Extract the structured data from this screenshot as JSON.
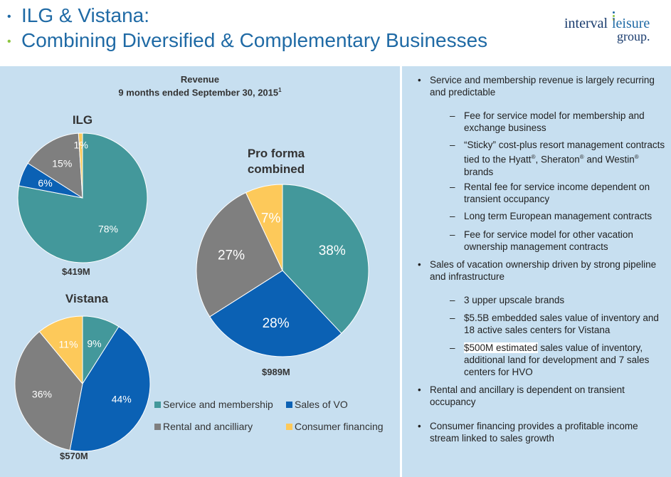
{
  "header": {
    "title_line1": "ILG & Vistana:",
    "title_line2": "Combining Diversified & Complementary Businesses",
    "bullet_char": "•",
    "bullet_colors": [
      "#1f6aa5",
      "#8dc63f"
    ],
    "title_color": "#1f6aa5"
  },
  "logo": {
    "word1": "interval",
    "word2": "leisure",
    "word3": "group.",
    "dot_colors": [
      "#1f6aa5",
      "#8dc63f",
      "#f7b500"
    ]
  },
  "chart_title": {
    "line1": "Revenue",
    "line2": "9 months ended September 30, 2015",
    "footnote": "1"
  },
  "colors": {
    "service_membership": "#43989b",
    "sales_vo": "#0b61b4",
    "rental_ancillary": "#7f7f7f",
    "consumer_financing": "#fdc95a"
  },
  "chart_data": [
    {
      "type": "pie",
      "title": "ILG",
      "total_label": "$419M",
      "slices": [
        {
          "name": "Service and membership",
          "value": 78,
          "label": "78%"
        },
        {
          "name": "Sales of VO",
          "value": 6,
          "label": "6%"
        },
        {
          "name": "Rental and ancilliary",
          "value": 15,
          "label": "15%"
        },
        {
          "name": "Consumer financing",
          "value": 1,
          "label": "1%"
        }
      ]
    },
    {
      "type": "pie",
      "title": "Vistana",
      "total_label": "$570M",
      "slices": [
        {
          "name": "Service and membership",
          "value": 9,
          "label": "9%"
        },
        {
          "name": "Sales of VO",
          "value": 44,
          "label": "44%"
        },
        {
          "name": "Rental and ancilliary",
          "value": 36,
          "label": "36%"
        },
        {
          "name": "Consumer financing",
          "value": 11,
          "label": "11%"
        }
      ]
    },
    {
      "type": "pie",
      "title_line1": "Pro forma",
      "title_line2": "combined",
      "total_label": "$989M",
      "slices": [
        {
          "name": "Service and membership",
          "value": 38,
          "label": "38%"
        },
        {
          "name": "Sales of VO",
          "value": 28,
          "label": "28%"
        },
        {
          "name": "Rental and ancilliary",
          "value": 27,
          "label": "27%"
        },
        {
          "name": "Consumer financing",
          "value": 7,
          "label": "7%"
        }
      ]
    }
  ],
  "legend": {
    "service_membership": "Service and membership",
    "sales_vo": "Sales of VO",
    "rental_ancillary": "Rental and ancilliary",
    "consumer_financing": "Consumer financing"
  },
  "bullets": {
    "b1": "Service and membership revenue is largely recurring and predictable",
    "b1_sub1": "Fee for service model for membership and exchange business",
    "b1_sub2_a": "“Sticky” cost-plus resort management contracts tied to the Hyatt",
    "b1_sub2_b": ", Sheraton",
    "b1_sub2_c": " and Westin",
    "b1_sub2_d": " brands",
    "reg": "®",
    "b1_sub3": "Rental fee for service income dependent on transient occupancy",
    "b1_sub4": "Long term European management contracts",
    "b1_sub5": "Fee for service model for other vacation ownership management contracts",
    "b2": "Sales of vacation ownership driven by strong pipeline and infrastructure",
    "b2_sub1": "3 upper upscale brands",
    "b2_sub2": "$5.5B embedded sales value of inventory and 18 active sales centers for Vistana",
    "b2_sub3_hl": "$500M estimated",
    "b2_sub3_rest": " sales value of inventory, additional land for development and 7 sales centers for HVO",
    "b3": "Rental and ancillary is dependent on transient occupancy",
    "b4": "Consumer financing provides a profitable income stream linked to sales growth",
    "dot": "•",
    "dash": "–"
  }
}
